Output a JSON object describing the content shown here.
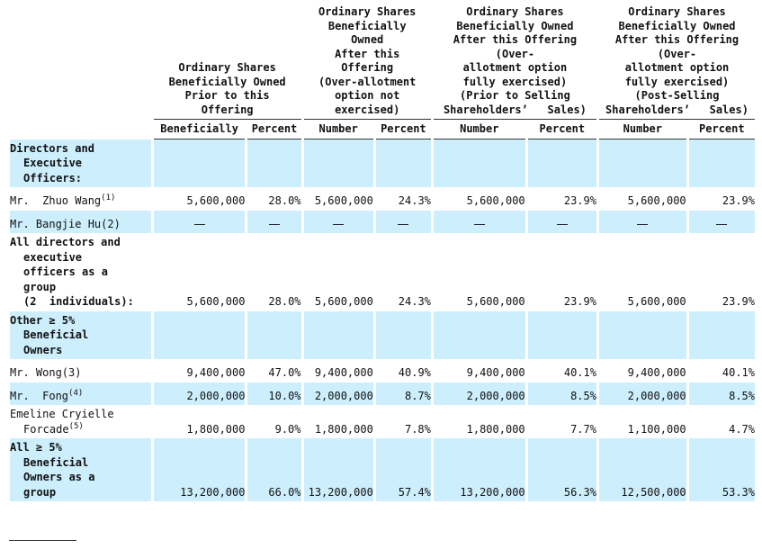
{
  "headers": {
    "group1": [
      "Ordinary Shares",
      "Beneficially Owned",
      "Prior to this",
      "Offering"
    ],
    "group2": [
      "Ordinary Shares",
      "Beneficially",
      "Owned",
      "After this",
      "Offering",
      "(Over-allotment",
      "option not",
      "exercised)"
    ],
    "group3": [
      "Ordinary  Shares",
      "Beneficially Owned",
      "After this Offering",
      "(Over-",
      "allotment  option",
      "fully  exercised)",
      "(Prior  to  Selling",
      "Shareholders’   Sales)"
    ],
    "group4": [
      "Ordinary  Shares",
      "Beneficially Owned",
      "After this Offering",
      "(Over-",
      "allotment  option",
      "fully  exercised)",
      "(Post-Selling",
      "Shareholders’   Sales)"
    ],
    "sub": [
      "Beneficially",
      "Percent",
      "Number",
      "Percent",
      "Number",
      "Percent",
      "Number",
      "Percent"
    ]
  },
  "rows": [
    {
      "label": [
        "Directors and",
        "Executive",
        "Officers:"
      ],
      "bold": true,
      "shade": true,
      "values": [
        "",
        "",
        "",
        "",
        "",
        "",
        "",
        ""
      ]
    },
    {
      "label": [
        "Mr.  Zhuo Wang"
      ],
      "sup": "(1)",
      "bold": false,
      "shade": false,
      "values": [
        "5,600,000",
        "28.0%",
        "5,600,000",
        "24.3%",
        "5,600,000",
        "23.9%",
        "5,600,000",
        "23.9%"
      ]
    },
    {
      "label": [
        "Mr. Bangjie Hu(2)"
      ],
      "bold": false,
      "shade": true,
      "dash": true,
      "values": [
        "—",
        "—",
        "—",
        "—",
        "—",
        "—",
        "—",
        "—"
      ]
    },
    {
      "label": [
        "All directors and",
        "executive",
        "officers as a",
        "group",
        "(2  individuals):"
      ],
      "bold": true,
      "shade": false,
      "values": [
        "5,600,000",
        "28.0%",
        "5,600,000",
        "24.3%",
        "5,600,000",
        "23.9%",
        "5,600,000",
        "23.9%"
      ]
    },
    {
      "label": [
        "Other ≥ 5%",
        "Beneficial",
        "Owners"
      ],
      "bold": true,
      "shade": true,
      "values": [
        "",
        "",
        "",
        "",
        "",
        "",
        "",
        ""
      ]
    },
    {
      "label": [
        "Mr. Wong(3)"
      ],
      "bold": false,
      "shade": false,
      "values": [
        "9,400,000",
        "47.0%",
        "9,400,000",
        "40.9%",
        "9,400,000",
        "40.1%",
        "9,400,000",
        "40.1%"
      ]
    },
    {
      "label": [
        "Mr.  Fong"
      ],
      "sup": "(4)",
      "bold": false,
      "shade": true,
      "values": [
        "2,000,000",
        "10.0%",
        "2,000,000",
        "8.7%",
        "2,000,000",
        "8.5%",
        "2,000,000",
        "8.5%"
      ]
    },
    {
      "label": [
        "Emeline Cryielle",
        "Forcade"
      ],
      "sup": "(5)",
      "bold": false,
      "shade": false,
      "values": [
        "1,800,000",
        "9.0%",
        "1,800,000",
        "7.8%",
        "1,800,000",
        "7.7%",
        "1,100,000",
        "4.7%"
      ]
    },
    {
      "label": [
        "All ≥ 5%",
        "Beneficial",
        "Owners as a",
        "group"
      ],
      "bold": true,
      "shade": true,
      "values": [
        "13,200,000",
        "66.0%",
        "13,200,000",
        "57.4%",
        "13,200,000",
        "56.3%",
        "12,500,000",
        "53.3%"
      ]
    }
  ]
}
